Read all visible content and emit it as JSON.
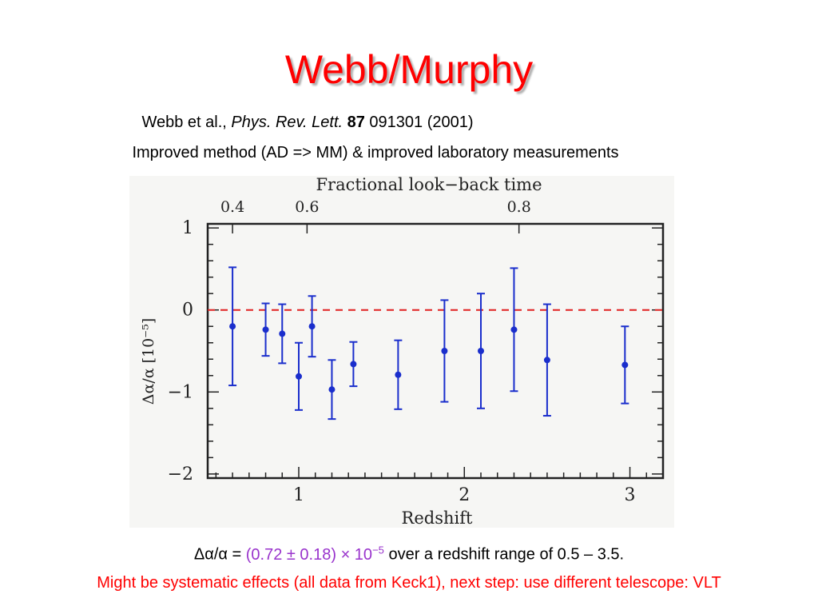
{
  "slide": {
    "title": "Webb/Murphy",
    "citation": {
      "authors": "Webb et al., ",
      "journal": "Phys. Rev. Lett.",
      "volume": "87",
      "rest": " 091301 (2001)"
    },
    "subtitle": "Improved method (AD => MM) & improved laboratory measurements",
    "result": {
      "prefix": "Δα/α = ",
      "value": "(0.72 ± 0.18) × 10",
      "exponent": "−5",
      "suffix": " over a redshift range of 0.5 – 3.5."
    },
    "caveat": "Might be systematic effects (all data from Keck1), next step: use different telescope: VLT"
  },
  "colors": {
    "title": "#ff0000",
    "caveat": "#ff0000",
    "result_value": "#9933cc",
    "points": "#1a2ecc",
    "zero_line": "#e02020"
  },
  "chart_data": {
    "type": "scatter",
    "title": "Fractional look−back time",
    "xlabel": "Redshift",
    "ylabel": "Δα/α  [10⁻⁵]",
    "xlim": [
      0.45,
      3.2
    ],
    "ylim": [
      -2.05,
      1.05
    ],
    "x_ticks": [
      1,
      2,
      3
    ],
    "x_tick_labels": [
      "1",
      "2",
      "3"
    ],
    "y_ticks": [
      1,
      0,
      -1,
      -2
    ],
    "y_tick_labels": [
      "1",
      "0",
      "−1",
      "−2"
    ],
    "top_axis": {
      "tick_labels": [
        "0.4",
        "0.6",
        "0.8"
      ],
      "tick_redshift": [
        0.6,
        1.05,
        2.33
      ]
    },
    "reference_line": {
      "y": 0,
      "style": "dashed"
    },
    "grid": false,
    "points": [
      {
        "x": 0.6,
        "y": -0.2,
        "err": 0.72
      },
      {
        "x": 0.8,
        "y": -0.24,
        "err": 0.32
      },
      {
        "x": 0.9,
        "y": -0.29,
        "err": 0.36
      },
      {
        "x": 1.0,
        "y": -0.81,
        "err": 0.41
      },
      {
        "x": 1.08,
        "y": -0.2,
        "err": 0.37
      },
      {
        "x": 1.2,
        "y": -0.97,
        "err": 0.36
      },
      {
        "x": 1.33,
        "y": -0.66,
        "err": 0.27
      },
      {
        "x": 1.6,
        "y": -0.79,
        "err": 0.42
      },
      {
        "x": 1.88,
        "y": -0.5,
        "err": 0.62
      },
      {
        "x": 2.1,
        "y": -0.5,
        "err": 0.7
      },
      {
        "x": 2.3,
        "y": -0.24,
        "err": 0.75
      },
      {
        "x": 2.5,
        "y": -0.61,
        "err": 0.68
      },
      {
        "x": 2.97,
        "y": -0.67,
        "err": 0.47
      }
    ]
  }
}
